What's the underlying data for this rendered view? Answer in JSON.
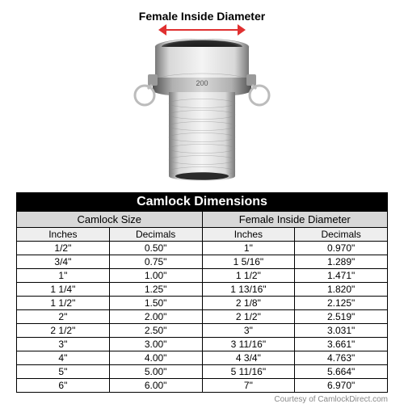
{
  "diagram": {
    "label": "Female Inside Diameter",
    "arrow_color": "#e03030"
  },
  "table": {
    "title": "Camlock Dimensions",
    "group_headers": [
      "Camlock Size",
      "Female Inside Diameter"
    ],
    "sub_headers": [
      "Inches",
      "Decimals",
      "Inches",
      "Decimals"
    ],
    "rows": [
      [
        "1/2\"",
        "0.50\"",
        "1\"",
        "0.970\""
      ],
      [
        "3/4\"",
        "0.75\"",
        "1 5/16\"",
        "1.289\""
      ],
      [
        "1\"",
        "1.00\"",
        "1 1/2\"",
        "1.471\""
      ],
      [
        "1 1/4\"",
        "1.25\"",
        "1 13/16\"",
        "1.820\""
      ],
      [
        "1 1/2\"",
        "1.50\"",
        "2 1/8\"",
        "2.125\""
      ],
      [
        "2\"",
        "2.00\"",
        "2 1/2\"",
        "2.519\""
      ],
      [
        "2 1/2\"",
        "2.50\"",
        "3\"",
        "3.031\""
      ],
      [
        "3\"",
        "3.00\"",
        "3 11/16\"",
        "3.661\""
      ],
      [
        "4\"",
        "4.00\"",
        "4 3/4\"",
        "4.763\""
      ],
      [
        "5\"",
        "5.00\"",
        "5 11/16\"",
        "5.664\""
      ],
      [
        "6\"",
        "6.00\"",
        "7\"",
        "6.970\""
      ]
    ],
    "colors": {
      "title_bg": "#000000",
      "title_fg": "#ffffff",
      "group_bg": "#d8d8d8",
      "sub_bg": "#eeeeee",
      "border": "#000000"
    }
  },
  "credit": "Courtesy of CamlockDirect.com"
}
